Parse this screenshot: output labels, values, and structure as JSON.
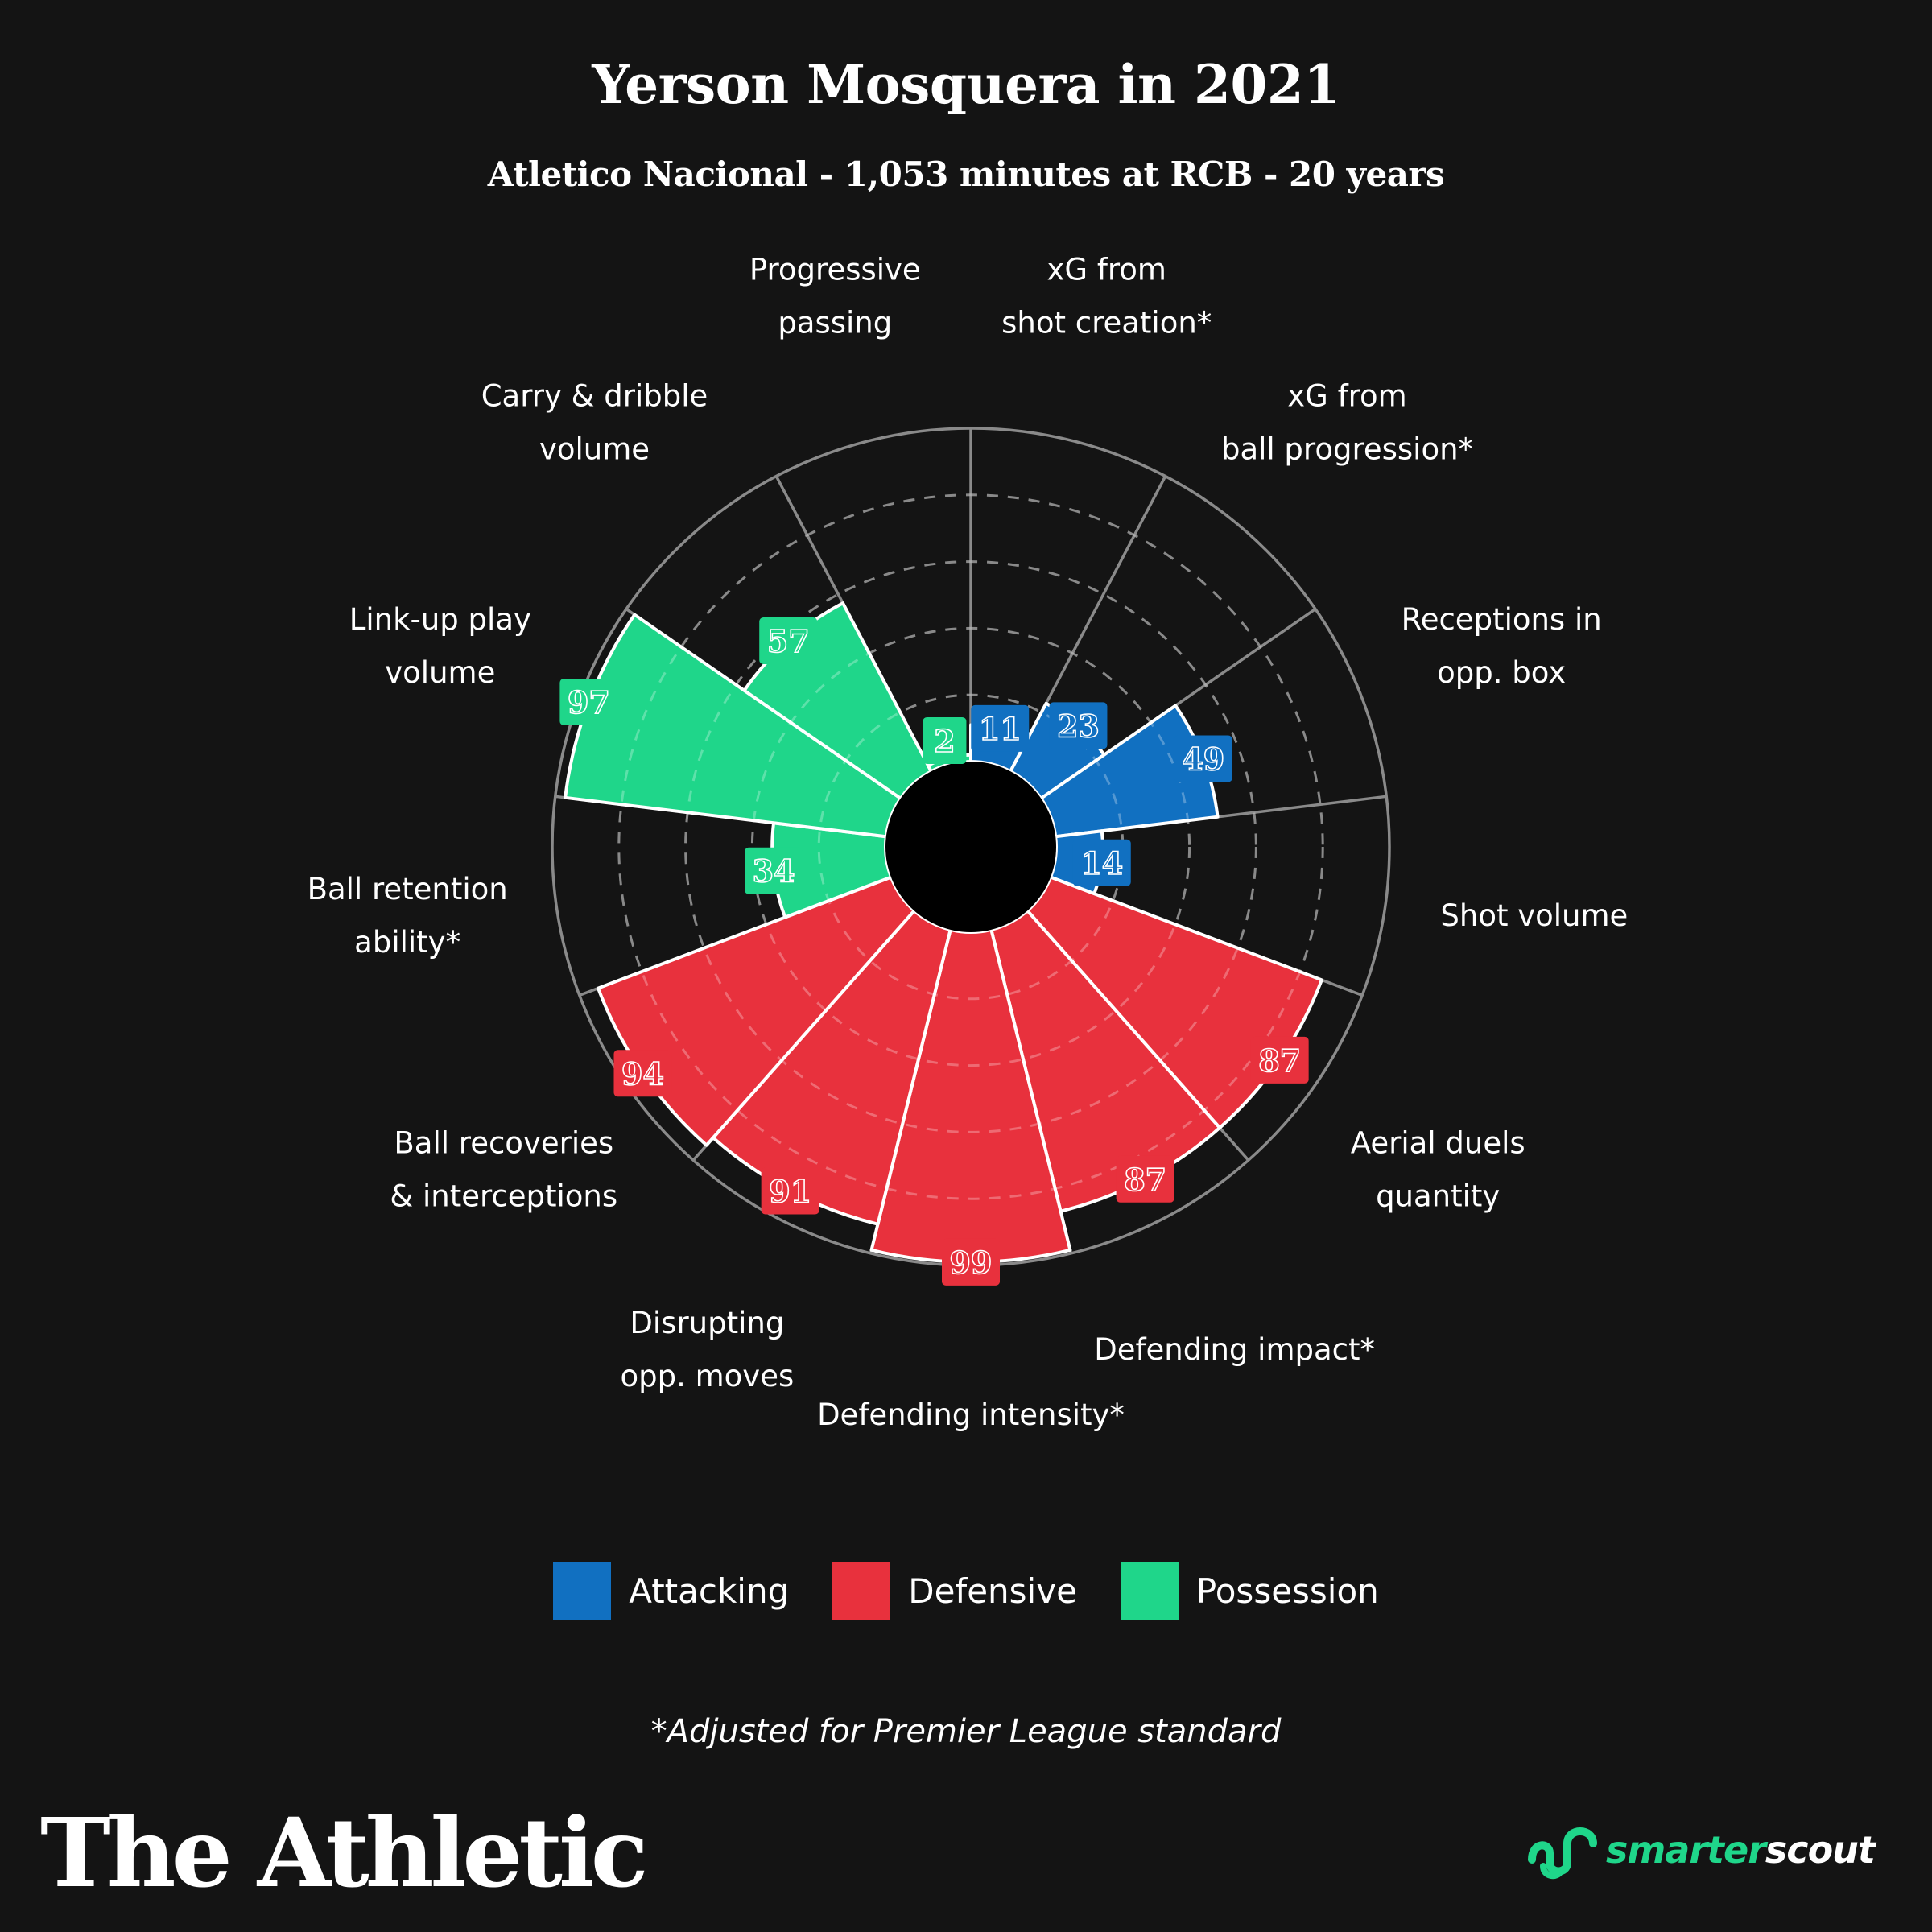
{
  "title": "Yerson Mosquera in 2021",
  "subtitle": "Atletico Nacional - 1,053 minutes at RCB - 20 years",
  "footnote": "*Adjusted for Premier League standard",
  "brand": "The Athletic",
  "partner": {
    "part1": "smarter",
    "part2": "scout",
    "icon": "smarterscout-logo-icon"
  },
  "colors": {
    "Attacking": "#1170c1",
    "Defensive": "#e8313d",
    "Possession": "#1fd68a",
    "background": "#141414"
  },
  "legend": [
    {
      "label": "Attacking",
      "color": "#1170c1"
    },
    {
      "label": "Defensive",
      "color": "#e8313d"
    },
    {
      "label": "Possession",
      "color": "#1fd68a"
    }
  ],
  "chart_data": {
    "type": "polar-bar",
    "rlim": [
      0,
      100
    ],
    "grid": true,
    "legend_placement": "bottom-center",
    "categories": [
      {
        "label": "xG from\nshot creation*",
        "value": 11,
        "group": "Attacking"
      },
      {
        "label": "xG from\nball progression*",
        "value": 23,
        "group": "Attacking"
      },
      {
        "label": "Receptions in\nopp. box",
        "value": 49,
        "group": "Attacking"
      },
      {
        "label": "Shot volume",
        "value": 14,
        "group": "Attacking"
      },
      {
        "label": "Aerial duels\nquantity",
        "value": 87,
        "group": "Defensive"
      },
      {
        "label": "Defending impact*",
        "value": 87,
        "group": "Defensive"
      },
      {
        "label": "Defending intensity*",
        "value": 99,
        "group": "Defensive"
      },
      {
        "label": "Disrupting\nopp. moves",
        "value": 91,
        "group": "Defensive"
      },
      {
        "label": "Ball recoveries\n& interceptions",
        "value": 94,
        "group": "Defensive"
      },
      {
        "label": "Ball retention\nability*",
        "value": 34,
        "group": "Possession"
      },
      {
        "label": "Link-up play\nvolume",
        "value": 97,
        "group": "Possession"
      },
      {
        "label": "Carry & dribble\nvolume",
        "value": 57,
        "group": "Possession"
      },
      {
        "label": "Progressive\npassing",
        "value": 2,
        "group": "Possession"
      }
    ]
  }
}
